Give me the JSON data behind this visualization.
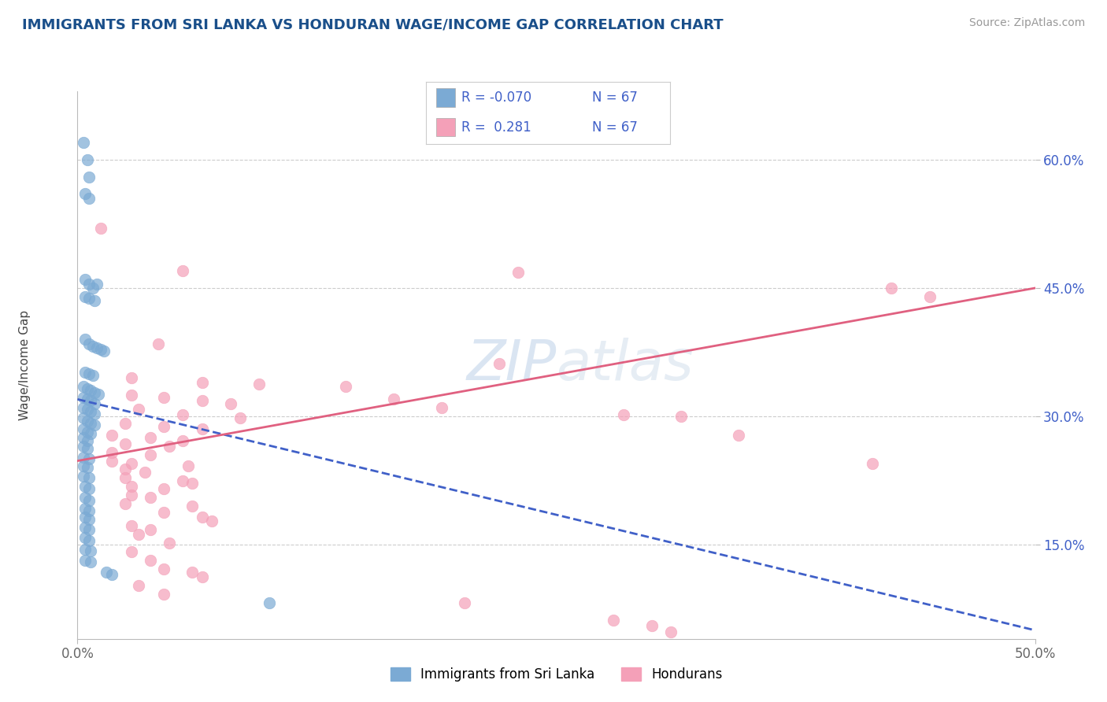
{
  "title": "IMMIGRANTS FROM SRI LANKA VS HONDURAN WAGE/INCOME GAP CORRELATION CHART",
  "source": "Source: ZipAtlas.com",
  "ylabel": "Wage/Income Gap",
  "xlim": [
    0.0,
    0.5
  ],
  "ylim": [
    0.04,
    0.68
  ],
  "y_ticks": [
    0.15,
    0.3,
    0.45,
    0.6
  ],
  "y_tick_labels": [
    "15.0%",
    "30.0%",
    "45.0%",
    "60.0%"
  ],
  "x_ticks": [
    0.0,
    0.5
  ],
  "x_tick_labels": [
    "0.0%",
    "50.0%"
  ],
  "legend_r1": "-0.070",
  "legend_r2": " 0.281",
  "legend_n": "67",
  "legend_label1": "Immigrants from Sri Lanka",
  "legend_label2": "Hondurans",
  "blue_dot": "#7baad4",
  "pink_dot": "#f4a0b8",
  "blue_line": "#4060c8",
  "pink_line": "#e06080",
  "title_color": "#1a4f8a",
  "source_color": "#999999",
  "tick_color": "#4060c8",
  "watermark": "ZIPatlas",
  "blue_scatter": [
    [
      0.003,
      0.62
    ],
    [
      0.005,
      0.6
    ],
    [
      0.006,
      0.58
    ],
    [
      0.004,
      0.56
    ],
    [
      0.006,
      0.555
    ],
    [
      0.004,
      0.46
    ],
    [
      0.006,
      0.455
    ],
    [
      0.008,
      0.45
    ],
    [
      0.01,
      0.455
    ],
    [
      0.004,
      0.44
    ],
    [
      0.006,
      0.438
    ],
    [
      0.009,
      0.435
    ],
    [
      0.004,
      0.39
    ],
    [
      0.006,
      0.385
    ],
    [
      0.008,
      0.382
    ],
    [
      0.01,
      0.38
    ],
    [
      0.012,
      0.378
    ],
    [
      0.014,
      0.376
    ],
    [
      0.004,
      0.352
    ],
    [
      0.006,
      0.35
    ],
    [
      0.008,
      0.348
    ],
    [
      0.003,
      0.335
    ],
    [
      0.005,
      0.332
    ],
    [
      0.007,
      0.33
    ],
    [
      0.009,
      0.328
    ],
    [
      0.011,
      0.326
    ],
    [
      0.003,
      0.322
    ],
    [
      0.005,
      0.32
    ],
    [
      0.007,
      0.318
    ],
    [
      0.009,
      0.315
    ],
    [
      0.003,
      0.31
    ],
    [
      0.005,
      0.308
    ],
    [
      0.007,
      0.306
    ],
    [
      0.009,
      0.303
    ],
    [
      0.003,
      0.298
    ],
    [
      0.005,
      0.295
    ],
    [
      0.007,
      0.292
    ],
    [
      0.009,
      0.29
    ],
    [
      0.003,
      0.285
    ],
    [
      0.005,
      0.282
    ],
    [
      0.007,
      0.28
    ],
    [
      0.003,
      0.275
    ],
    [
      0.005,
      0.272
    ],
    [
      0.003,
      0.265
    ],
    [
      0.005,
      0.262
    ],
    [
      0.003,
      0.252
    ],
    [
      0.006,
      0.25
    ],
    [
      0.003,
      0.242
    ],
    [
      0.005,
      0.24
    ],
    [
      0.003,
      0.23
    ],
    [
      0.006,
      0.228
    ],
    [
      0.004,
      0.218
    ],
    [
      0.006,
      0.215
    ],
    [
      0.004,
      0.205
    ],
    [
      0.006,
      0.202
    ],
    [
      0.004,
      0.192
    ],
    [
      0.006,
      0.19
    ],
    [
      0.004,
      0.182
    ],
    [
      0.006,
      0.18
    ],
    [
      0.004,
      0.17
    ],
    [
      0.006,
      0.168
    ],
    [
      0.004,
      0.158
    ],
    [
      0.006,
      0.155
    ],
    [
      0.004,
      0.145
    ],
    [
      0.007,
      0.143
    ],
    [
      0.004,
      0.132
    ],
    [
      0.007,
      0.13
    ],
    [
      0.015,
      0.118
    ],
    [
      0.018,
      0.115
    ],
    [
      0.1,
      0.082
    ]
  ],
  "pink_scatter": [
    [
      0.012,
      0.52
    ],
    [
      0.055,
      0.47
    ],
    [
      0.23,
      0.468
    ],
    [
      0.042,
      0.385
    ],
    [
      0.22,
      0.362
    ],
    [
      0.028,
      0.345
    ],
    [
      0.065,
      0.34
    ],
    [
      0.095,
      0.338
    ],
    [
      0.14,
      0.335
    ],
    [
      0.028,
      0.325
    ],
    [
      0.045,
      0.322
    ],
    [
      0.065,
      0.318
    ],
    [
      0.08,
      0.315
    ],
    [
      0.032,
      0.308
    ],
    [
      0.055,
      0.302
    ],
    [
      0.085,
      0.298
    ],
    [
      0.285,
      0.302
    ],
    [
      0.315,
      0.3
    ],
    [
      0.025,
      0.292
    ],
    [
      0.045,
      0.288
    ],
    [
      0.065,
      0.285
    ],
    [
      0.018,
      0.278
    ],
    [
      0.038,
      0.275
    ],
    [
      0.055,
      0.272
    ],
    [
      0.345,
      0.278
    ],
    [
      0.025,
      0.268
    ],
    [
      0.048,
      0.265
    ],
    [
      0.018,
      0.258
    ],
    [
      0.038,
      0.255
    ],
    [
      0.018,
      0.248
    ],
    [
      0.028,
      0.245
    ],
    [
      0.058,
      0.242
    ],
    [
      0.025,
      0.238
    ],
    [
      0.035,
      0.235
    ],
    [
      0.025,
      0.228
    ],
    [
      0.055,
      0.225
    ],
    [
      0.06,
      0.222
    ],
    [
      0.028,
      0.218
    ],
    [
      0.045,
      0.215
    ],
    [
      0.028,
      0.208
    ],
    [
      0.038,
      0.205
    ],
    [
      0.025,
      0.198
    ],
    [
      0.06,
      0.195
    ],
    [
      0.045,
      0.188
    ],
    [
      0.065,
      0.182
    ],
    [
      0.07,
      0.178
    ],
    [
      0.028,
      0.172
    ],
    [
      0.038,
      0.168
    ],
    [
      0.032,
      0.162
    ],
    [
      0.048,
      0.152
    ],
    [
      0.028,
      0.142
    ],
    [
      0.038,
      0.132
    ],
    [
      0.045,
      0.122
    ],
    [
      0.06,
      0.118
    ],
    [
      0.065,
      0.112
    ],
    [
      0.032,
      0.102
    ],
    [
      0.045,
      0.092
    ],
    [
      0.202,
      0.082
    ],
    [
      0.28,
      0.062
    ],
    [
      0.3,
      0.055
    ],
    [
      0.31,
      0.048
    ],
    [
      0.425,
      0.45
    ],
    [
      0.445,
      0.44
    ],
    [
      0.165,
      0.32
    ],
    [
      0.19,
      0.31
    ],
    [
      0.415,
      0.245
    ]
  ],
  "blue_line_x0": 0.0,
  "blue_line_y0": 0.32,
  "blue_line_x1": 0.5,
  "blue_line_y1": 0.05,
  "pink_line_x0": 0.0,
  "pink_line_y0": 0.248,
  "pink_line_x1": 0.5,
  "pink_line_y1": 0.45
}
